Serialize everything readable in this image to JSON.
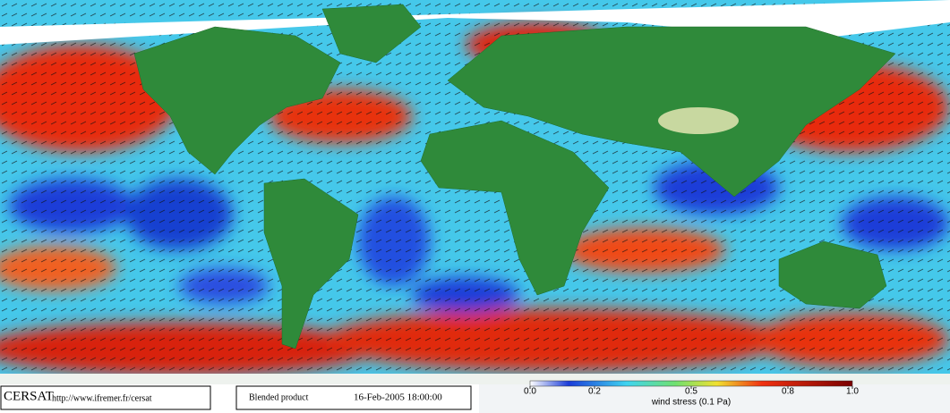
{
  "footer": {
    "brand": "CERSAT",
    "url": "http://www.ifremer.fr/cersat",
    "product": "Blended product",
    "date": "16-Feb-2005 18:00:00"
  },
  "colorbar": {
    "label": "wind stress (0.1 Pa)",
    "ticks": [
      {
        "value": 0,
        "label": "0.0"
      },
      {
        "value": 0.2,
        "label": "0.2"
      },
      {
        "value": 0.5,
        "label": "0.5"
      },
      {
        "value": 0.8,
        "label": "0.8"
      },
      {
        "value": 1,
        "label": "1.0"
      }
    ]
  }
}
